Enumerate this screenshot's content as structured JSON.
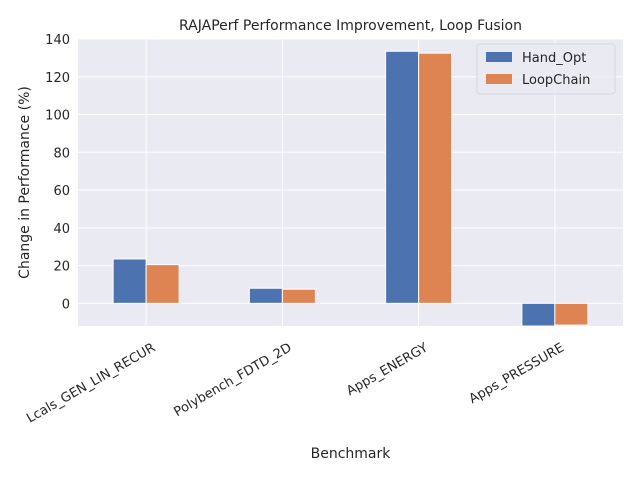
{
  "chart_data": {
    "type": "bar",
    "title": "RAJAPerf Performance Improvement, Loop Fusion",
    "xlabel": "Benchmark",
    "ylabel": "Change in Performance (%)",
    "categories": [
      "Lcals_GEN_LIN_RECUR",
      "Polybench_FDTD_2D",
      "Apps_ENERGY",
      "Apps_PRESSURE"
    ],
    "series": [
      {
        "name": "Hand_Opt",
        "values": [
          23.5,
          8,
          133.5,
          -12
        ],
        "color": "#4c72b0"
      },
      {
        "name": "LoopChain",
        "values": [
          20.5,
          7.5,
          132.5,
          -11.5
        ],
        "color": "#dd8452"
      }
    ],
    "ylim": [
      -12,
      140
    ],
    "yticks": [
      0,
      20,
      40,
      60,
      80,
      100,
      120,
      140
    ],
    "grid": true,
    "legend_position": "top-right",
    "plot_background": "#eaeaf2",
    "grid_color": "#ffffff"
  }
}
